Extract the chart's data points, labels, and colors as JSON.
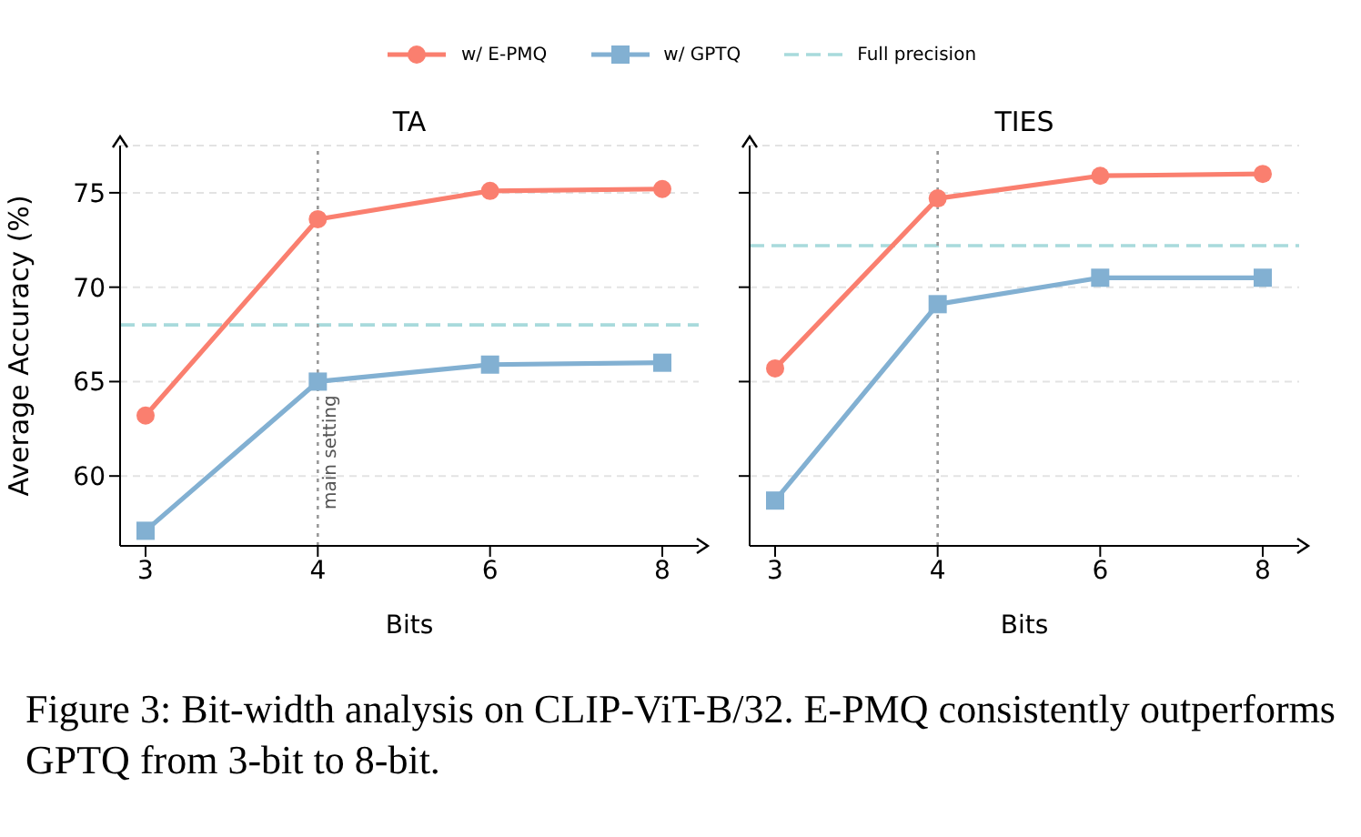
{
  "chart_data": [
    {
      "type": "line",
      "title": "TA",
      "xlabel": "Bits",
      "ylabel": "Average Accuracy (%)",
      "categories": [
        "3",
        "4",
        "6",
        "8"
      ],
      "series": [
        {
          "name": "w/ E-PMQ",
          "color": "#fa7f6f",
          "marker": "circle",
          "values": [
            63.2,
            73.6,
            75.1,
            75.2
          ]
        },
        {
          "name": "w/ GPTQ",
          "color": "#82b0d2",
          "marker": "square",
          "values": [
            57.1,
            65.0,
            65.9,
            66.0
          ]
        }
      ],
      "ylim": [
        56.3,
        77.5
      ],
      "yticks": [
        60,
        65,
        70,
        75
      ],
      "grid": "y",
      "legend": "top",
      "line_style": "solid",
      "ref_lines": [
        {
          "axis": "y",
          "value": 68.0,
          "label": "Full precision",
          "color": "#a8dadc",
          "line_style": "dashed"
        },
        {
          "axis": "x",
          "value": "4",
          "label": "main setting",
          "color": "#999999",
          "line_style": "dotted"
        }
      ],
      "annotations": [
        "Figure 3: Bit-width analysis on CLIP-ViT-B/32. E-PMQ consistently outperforms GPTQ from 3-bit to 8-bit."
      ]
    },
    {
      "type": "line",
      "title": "TIES",
      "xlabel": "Bits",
      "categories": [
        "3",
        "4",
        "6",
        "8"
      ],
      "series": [
        {
          "color": "#fa7f6f",
          "marker": "circle",
          "values": [
            65.7,
            74.7,
            75.9,
            76.0
          ]
        },
        {
          "color": "#82b0d2",
          "marker": "square",
          "values": [
            58.7,
            69.1,
            70.5,
            70.5
          ]
        }
      ],
      "ylim": [
        56.3,
        77.5
      ],
      "yticks": [
        60,
        65,
        70,
        75
      ],
      "grid": "y",
      "tick_labels": "x",
      "line_style": "solid",
      "ref_lines": [
        {
          "axis": "y",
          "value": 72.2,
          "color": "#a8dadc",
          "line_style": "dashed"
        },
        {
          "axis": "x",
          "value": "4",
          "color": "#999999",
          "line_style": "dotted"
        }
      ]
    }
  ]
}
